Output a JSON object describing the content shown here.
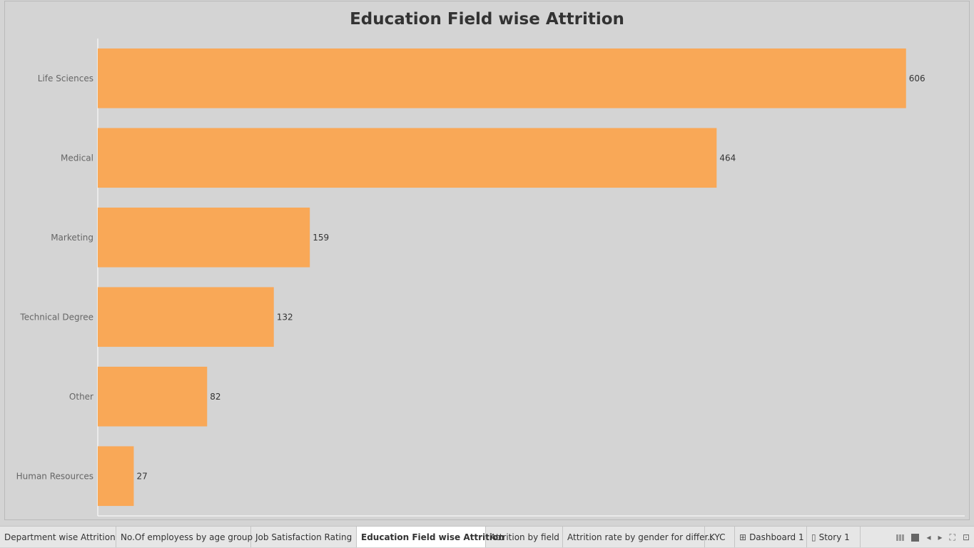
{
  "chart_data": {
    "type": "bar",
    "orientation": "horizontal",
    "title": "Education Field wise Attrition",
    "categories": [
      "Life Sciences",
      "Medical",
      "Marketing",
      "Technical Degree",
      "Other",
      "Human Resources"
    ],
    "values": [
      606,
      464,
      159,
      132,
      82,
      27
    ],
    "xlim": [
      0,
      650
    ],
    "bar_color": "#f9a857",
    "grid": false,
    "legend": "none"
  },
  "tabs": [
    {
      "label": "Department wise Attrition",
      "icon": "",
      "active": false
    },
    {
      "label": "No.Of employess by age group",
      "icon": "",
      "active": false
    },
    {
      "label": "Job Satisfaction Rating",
      "icon": "",
      "active": false
    },
    {
      "label": "Education Field wise Attrition",
      "icon": "",
      "active": true
    },
    {
      "label": "Attrition by field",
      "icon": "",
      "active": false
    },
    {
      "label": "Attrition rate by gender for differ...",
      "icon": "",
      "active": false
    },
    {
      "label": "KYC",
      "icon": "",
      "active": false
    },
    {
      "label": "Dashboard 1",
      "icon": "dashboard-icon",
      "active": false
    },
    {
      "label": "Story 1",
      "icon": "story-icon",
      "active": false
    }
  ],
  "controls": {
    "nav_prev": "◂",
    "nav_next": "▸",
    "fullscreen": "⛶",
    "present": "⊡"
  }
}
